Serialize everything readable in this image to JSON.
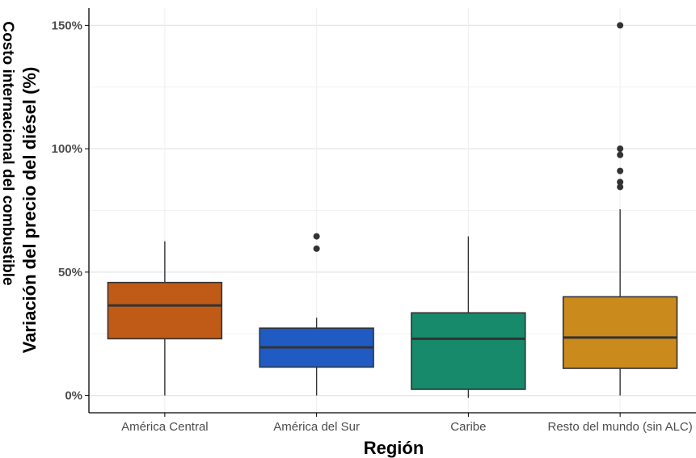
{
  "chart_data": {
    "type": "box",
    "title": "",
    "xlabel": "Región",
    "ylabel": "Variación del precio del diésel (%)",
    "ylabel_secondary": "Costo internacional del combustible",
    "ylim": [
      -7,
      157
    ],
    "yticks": [
      0,
      50,
      100,
      150
    ],
    "ytick_labels": [
      "0%",
      "50%",
      "100%",
      "150%"
    ],
    "grid": true,
    "categories": [
      "América Central",
      "América del Sur",
      "Caribe",
      "Resto del mundo (sin ALC)"
    ],
    "colors": [
      "#bf5b17",
      "#1f5bc2",
      "#168a6a",
      "#cb8a1c"
    ],
    "boxes": [
      {
        "min": 0,
        "q1": 23,
        "median": 36.5,
        "q3": 45.8,
        "max": 62.5,
        "outliers": []
      },
      {
        "min": 0,
        "q1": 11.5,
        "median": 19.5,
        "q3": 27.3,
        "max": 31.5,
        "outliers": [
          59.5,
          64.5
        ]
      },
      {
        "min": -1,
        "q1": 2.5,
        "median": 23,
        "q3": 33.5,
        "max": 64.5,
        "outliers": []
      },
      {
        "min": 0,
        "q1": 11,
        "median": 23.5,
        "q3": 40,
        "max": 75.5,
        "outliers": [
          84.5,
          86.5,
          91,
          97.5,
          100,
          150
        ]
      }
    ]
  }
}
